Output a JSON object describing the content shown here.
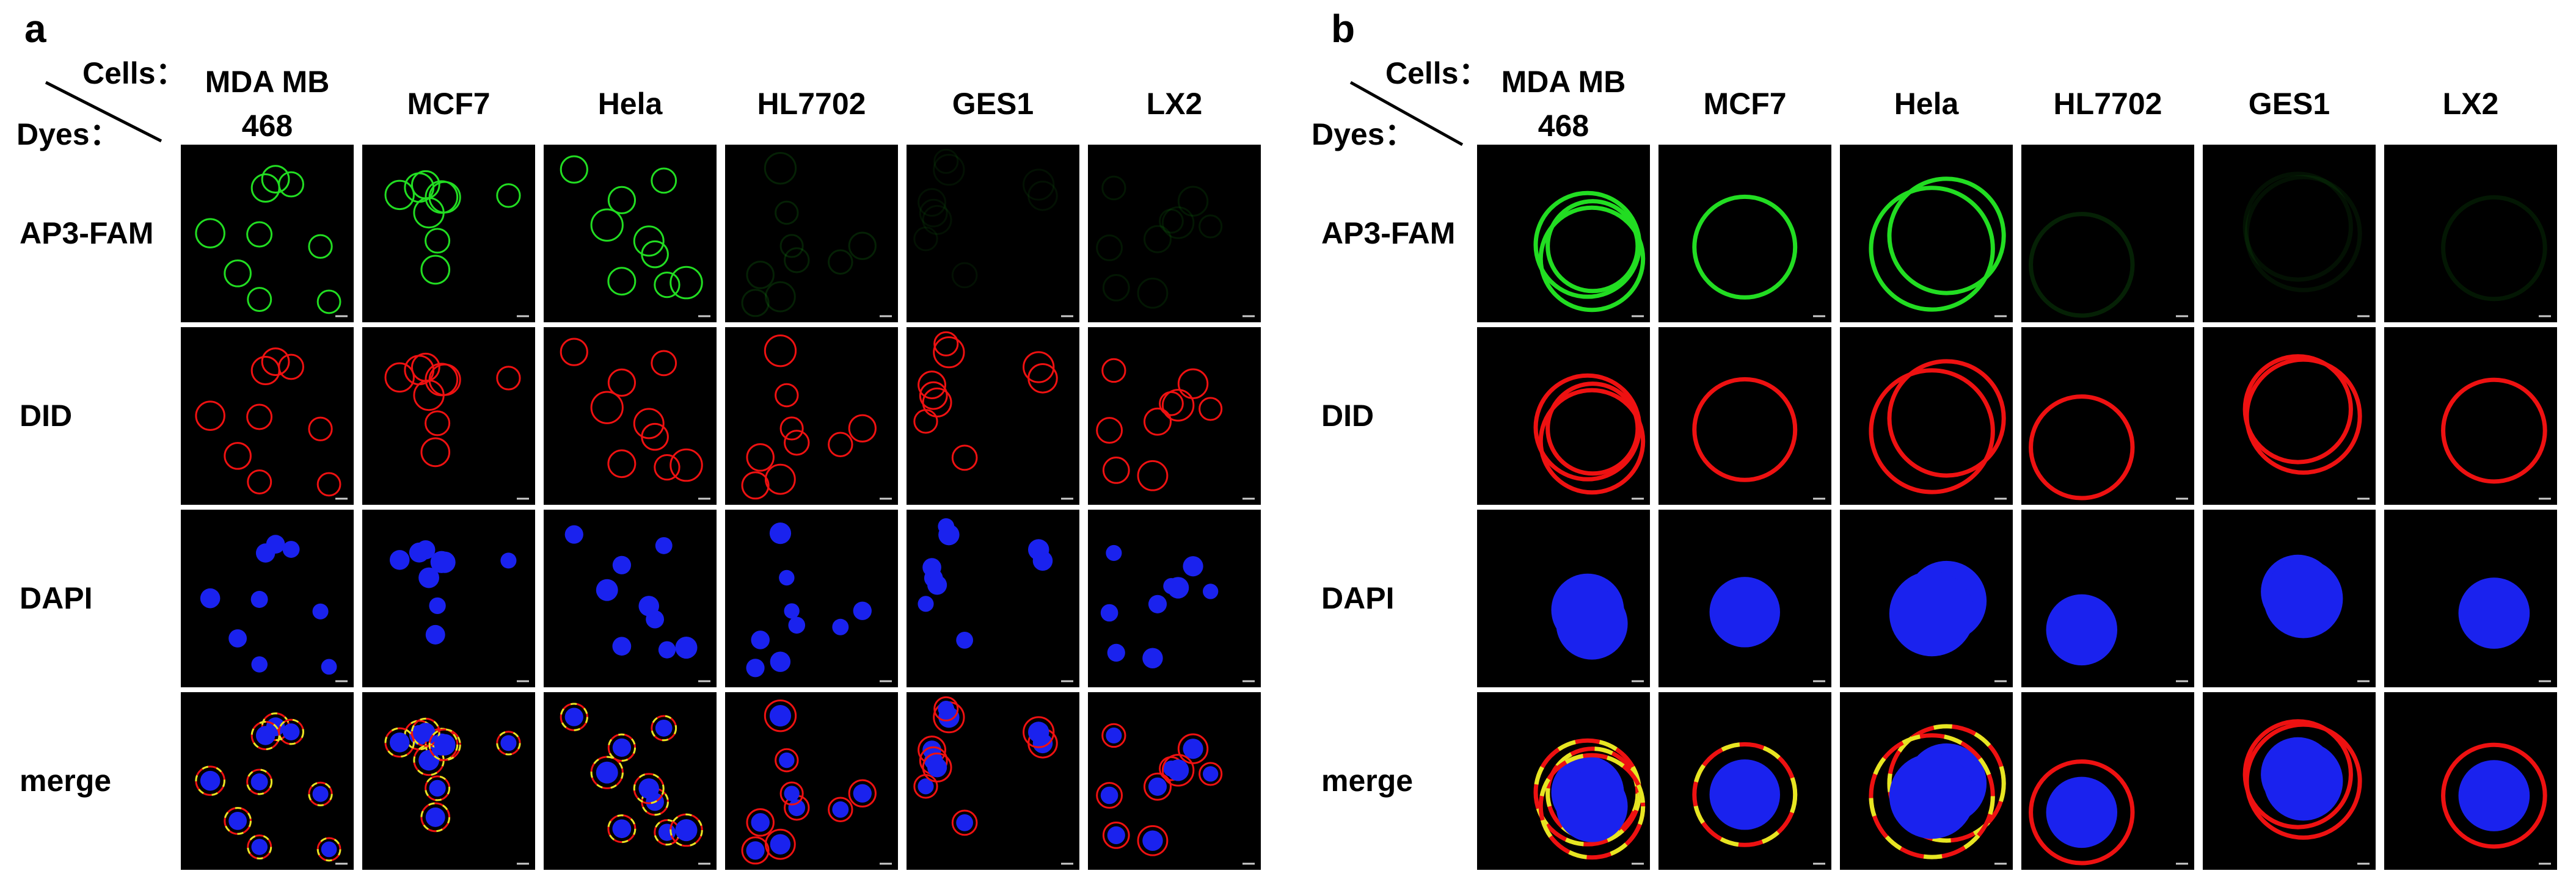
{
  "panels": [
    {
      "label": "a",
      "cells_label": "Cells：",
      "dyes_label": "Dyes：",
      "columns": [
        "MDA MB 468",
        "MCF7",
        "Hela",
        "HL7702",
        "GES1",
        "LX2"
      ],
      "rows": [
        "AP3-FAM",
        "DID",
        "DAPI",
        "merge"
      ]
    },
    {
      "label": "b",
      "cells_label": "Cells：",
      "dyes_label": "Dyes：",
      "columns": [
        "MDA MB 468",
        "MCF7",
        "Hela",
        "HL7702",
        "GES1",
        "LX2"
      ],
      "rows": [
        "AP3-FAM",
        "DID",
        "DAPI",
        "merge"
      ]
    }
  ]
}
